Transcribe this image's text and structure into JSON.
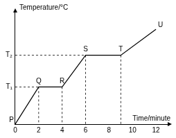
{
  "chart_data": {
    "type": "line",
    "x_label": "Time/minute",
    "y_label": "Temperature/°C",
    "x": [
      0,
      2,
      4,
      6,
      9,
      12
    ],
    "values": [
      0,
      1,
      1,
      1.85,
      1.85,
      2.55
    ],
    "point_labels": [
      "P",
      "Q",
      "R",
      "S",
      "T",
      "U"
    ],
    "color": "#000000",
    "xlim": [
      0,
      13
    ],
    "ylim": [
      0,
      3
    ],
    "xticks": [
      0,
      2,
      4,
      6,
      8,
      10,
      12
    ],
    "yticks": [
      {
        "value": 1,
        "label": "T₁"
      },
      {
        "value": 1.85,
        "label": "T₂"
      }
    ],
    "grid": false
  }
}
